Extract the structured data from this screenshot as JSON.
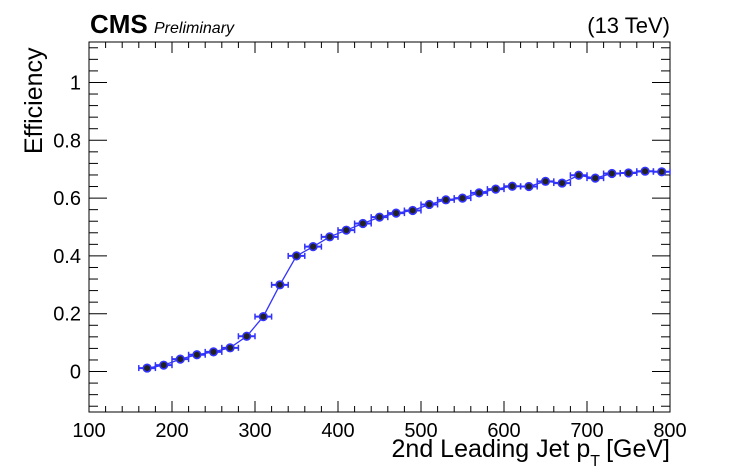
{
  "chart_data": {
    "type": "scatter",
    "experiment": "CMS",
    "status": "Preliminary",
    "energy": "(13 TeV)",
    "xlabel": "2nd Leading Jet p_T [GeV]",
    "xlabel_main": "2nd Leading Jet p",
    "xlabel_sub": "T",
    "xlabel_unit": "[GeV]",
    "ylabel": "Efficiency",
    "xlim": [
      100,
      800
    ],
    "ylim": [
      -0.14,
      1.14
    ],
    "xticks": [
      100,
      200,
      300,
      400,
      500,
      600,
      700,
      800
    ],
    "yticks": [
      0,
      0.2,
      0.4,
      0.6,
      0.8,
      1
    ],
    "ytick_labels": [
      "0",
      "0.2",
      "0.4",
      "0.6",
      "0.8",
      "1"
    ],
    "grid": false,
    "colors": {
      "marker_fill": "#222222",
      "marker_edge": "#3333ff",
      "line": "#3333ff"
    },
    "series": [
      {
        "x": [
          170,
          190,
          210,
          230,
          250,
          270,
          290,
          310,
          330,
          350,
          370,
          390,
          410,
          430,
          450,
          470,
          490,
          510,
          530,
          550,
          570,
          590,
          610,
          630,
          650,
          670,
          690,
          710,
          730,
          750,
          770,
          790
        ],
        "x_err": [
          10,
          10,
          10,
          10,
          10,
          10,
          10,
          10,
          10,
          10,
          10,
          10,
          10,
          10,
          10,
          10,
          10,
          10,
          10,
          10,
          10,
          10,
          10,
          10,
          10,
          10,
          10,
          10,
          10,
          10,
          10,
          10
        ],
        "y": [
          0.012,
          0.022,
          0.043,
          0.058,
          0.068,
          0.082,
          0.122,
          0.19,
          0.3,
          0.4,
          0.432,
          0.466,
          0.489,
          0.512,
          0.534,
          0.548,
          0.557,
          0.578,
          0.594,
          0.6,
          0.618,
          0.631,
          0.641,
          0.64,
          0.658,
          0.652,
          0.679,
          0.669,
          0.685,
          0.687,
          0.693,
          0.691
        ]
      }
    ]
  }
}
